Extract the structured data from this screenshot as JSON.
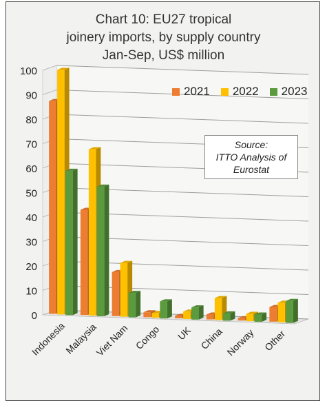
{
  "chart_data": {
    "type": "bar",
    "title_lines": [
      "Chart 10: EU27 tropical",
      "joinery imports, by supply country",
      "Jan-Sep, US$ million"
    ],
    "categories": [
      "Indonesia",
      "Malaysia",
      "Viet Nam",
      "Congo",
      "UK",
      "China",
      "Norway",
      "Other"
    ],
    "series": [
      {
        "name": "2021",
        "color": "#ed7d31",
        "values": [
          87,
          43,
          18,
          2,
          1,
          2,
          1,
          6
        ]
      },
      {
        "name": "2022",
        "color": "#ffc000",
        "values": [
          100,
          68,
          22,
          2,
          3,
          9,
          3,
          8
        ]
      },
      {
        "name": "2023",
        "color": "#5b9b3d",
        "values": [
          59,
          53,
          10,
          7,
          5,
          3,
          3,
          9
        ]
      }
    ],
    "ylim": [
      0,
      100
    ],
    "yticks": [
      0,
      10,
      20,
      30,
      40,
      50,
      60,
      70,
      80,
      90,
      100
    ],
    "grid": true,
    "legend_position": "top-right",
    "annotation": [
      "Source:",
      "ITTO Analysis of",
      "Eurostat"
    ]
  }
}
